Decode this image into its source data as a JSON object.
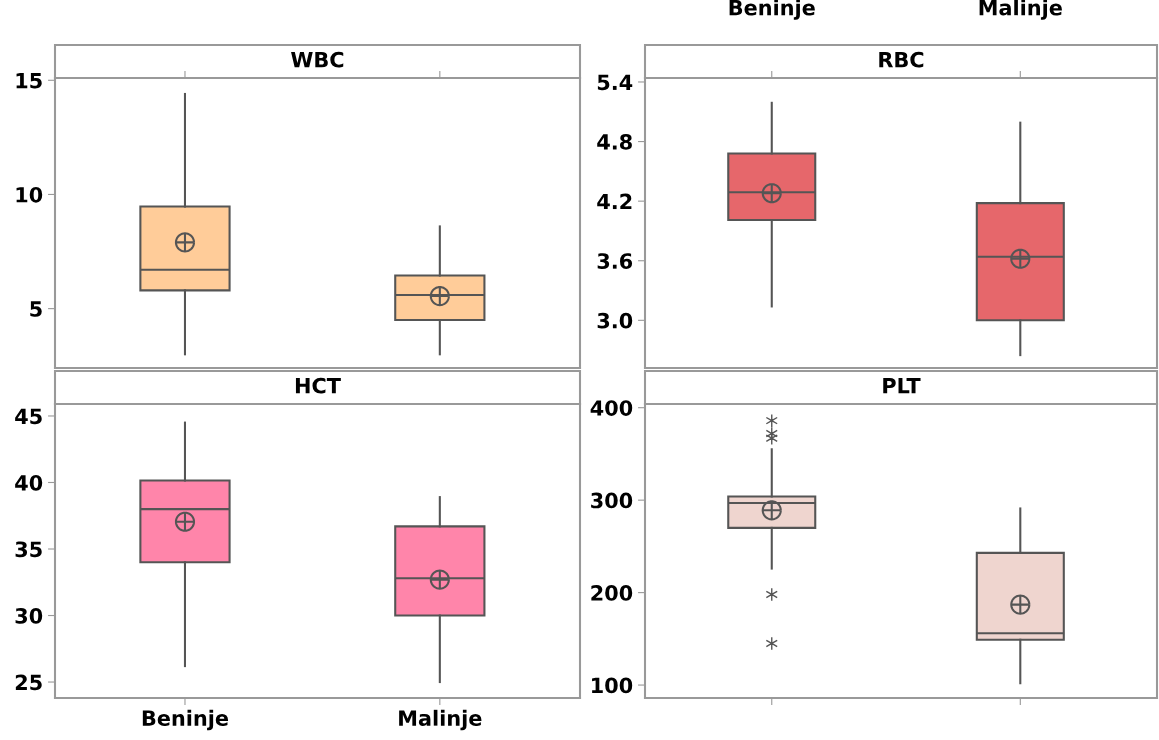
{
  "chart_data": [
    {
      "type": "box",
      "title": "WBC",
      "categories": [
        null,
        null
      ],
      "color": "#ffcc99",
      "ylim": [
        2.4,
        15.1
      ],
      "yticks": [
        5,
        10,
        15
      ],
      "tick_labels": "y",
      "grid": false,
      "legend": false,
      "boxes": [
        {
          "low": 3.0,
          "q1": 5.8,
          "median": 6.7,
          "q3": 9.47,
          "high": 14.4,
          "mean": 7.9
        },
        {
          "low": 3.0,
          "q1": 4.5,
          "median": 5.6,
          "q3": 6.45,
          "high": 8.6,
          "mean": 5.55
        }
      ]
    },
    {
      "type": "box",
      "title": "RBC",
      "categories": [
        "Beninje",
        "Malinje"
      ],
      "color": "#e6676b",
      "ylim": [
        2.52,
        5.44
      ],
      "yticks": [
        {
          "value": 3.0,
          "label": "3.0"
        },
        {
          "value": 3.6,
          "label": "3.6"
        },
        {
          "value": 4.2,
          "label": "4.2"
        },
        {
          "value": 4.8,
          "label": "4.8"
        },
        {
          "value": 5.4,
          "label": "5.4"
        }
      ],
      "grid": false,
      "legend": false,
      "boxes": [
        {
          "low": 3.14,
          "q1": 4.01,
          "median": 4.29,
          "q3": 4.68,
          "high": 5.19,
          "mean": 4.28
        },
        {
          "low": 2.65,
          "q1": 3.0,
          "median": 3.64,
          "q3": 4.18,
          "high": 4.99,
          "mean": 3.62
        }
      ]
    },
    {
      "type": "box",
      "title": "HCT",
      "categories": [
        "Beninje",
        "Malinje"
      ],
      "color": "#ff85aa",
      "ylim": [
        23.8,
        45.9
      ],
      "yticks": [
        25,
        30,
        35,
        40,
        45
      ],
      "grid": false,
      "legend": false,
      "boxes": [
        {
          "low": 26.2,
          "q1": 34.0,
          "median": 38.0,
          "q3": 40.15,
          "high": 44.5,
          "mean": 37.05
        },
        {
          "low": 25.0,
          "q1": 30.0,
          "median": 32.8,
          "q3": 36.7,
          "high": 38.9,
          "mean": 32.7
        }
      ]
    },
    {
      "type": "box",
      "title": "PLT",
      "categories": [
        null,
        null
      ],
      "color": "#efd5cf",
      "ylim": [
        86,
        404
      ],
      "yticks": [
        100,
        200,
        300,
        400
      ],
      "tick_labels": "y",
      "grid": false,
      "legend": false,
      "boxes": [
        {
          "low": 226,
          "q1": 270,
          "median": 297,
          "q3": 304,
          "high": 355,
          "mean": 289,
          "outliers": [
            386,
            372,
            367,
            198,
            145
          ]
        },
        {
          "low": 102,
          "q1": 149,
          "median": 156,
          "q3": 243,
          "high": 291,
          "mean": 187
        }
      ]
    }
  ]
}
